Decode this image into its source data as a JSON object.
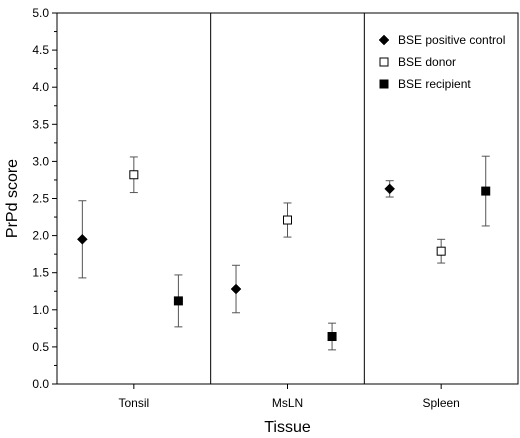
{
  "chart_data": {
    "type": "scatter",
    "xlabel": "Tissue",
    "ylabel": "PrPd score",
    "ylim": [
      0,
      5.0
    ],
    "y_ticks": [
      "0.0",
      "0.5",
      "1.0",
      "1.5",
      "2.0",
      "2.5",
      "3.0",
      "3.5",
      "4.0",
      "4.5",
      "5.0"
    ],
    "categories": [
      "Tonsil",
      "MsLN",
      "Spleen"
    ],
    "grid": false,
    "category_separators": true,
    "legend_position": "top-right",
    "series": [
      {
        "name": "BSE positive control",
        "marker": "filled-diamond",
        "values": [
          1.95,
          1.28,
          2.63
        ],
        "error": [
          0.52,
          0.32,
          0.11
        ]
      },
      {
        "name": "BSE donor",
        "marker": "open-square",
        "values": [
          2.82,
          2.21,
          1.79
        ],
        "error": [
          0.24,
          0.23,
          0.16
        ]
      },
      {
        "name": "BSE recipient",
        "marker": "filled-square",
        "values": [
          1.12,
          0.64,
          2.6
        ],
        "error": [
          0.35,
          0.18,
          0.47
        ]
      }
    ]
  }
}
